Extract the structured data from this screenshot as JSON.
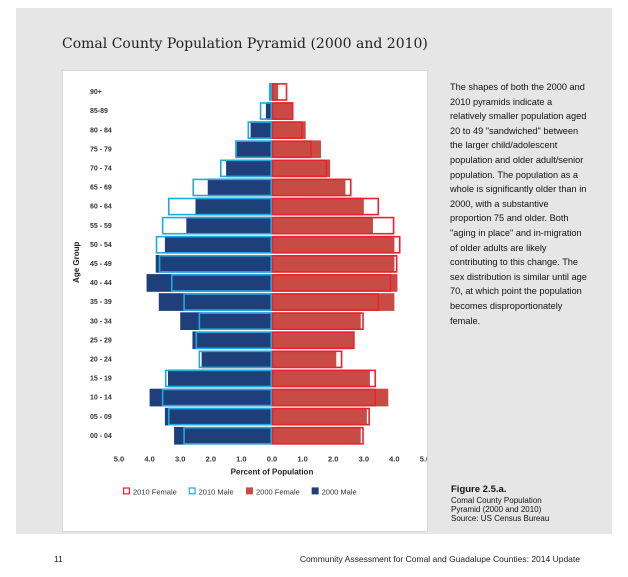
{
  "page": {
    "title": "Comal County Population Pyramid (2000 and 2010)",
    "description": "The shapes of both the 2000 and 2010 pyramids indicate a relatively smaller population aged 20 to 49 \"sandwiched\" between the larger child/adolescent population and older adult/senior population. The population as a whole is significantly older than in 2000, with a substantive proportion 75 and older. Both \"aging in place\" and in-migration of older adults are likely contributing to this change. The sex distribution is similar until age 70, at which point the population becomes disproportionately female.",
    "figure_label": "Figure 2.5.a.",
    "caption_lines": [
      "Comal County Population",
      "Pyramid (2000 and 2010)",
      "Source: US Census Bureau"
    ],
    "page_number": "11",
    "footer_title": "Community Assessment for Comal and Guadalupe Counties: 2014 Update"
  },
  "colors": {
    "female_2010": "#e8232f",
    "male_2010": "#22a9dc",
    "female_2000": "#c84b45",
    "male_2000": "#1e3f7a",
    "band": "#e6e6e6"
  },
  "chart_data": {
    "type": "bar",
    "orientation": "horizontal",
    "subtype": "population-pyramid",
    "categories": [
      "90+",
      "85-89",
      "80 - 84",
      "75 - 79",
      "70 - 74",
      "65 - 69",
      "60 - 64",
      "55 - 59",
      "50 - 54",
      "45 - 49",
      "40 - 44",
      "35 - 39",
      "30 - 34",
      "25 - 29",
      "20 - 24",
      "15 - 19",
      "10 - 14",
      "05 - 09",
      "00 - 04"
    ],
    "series": [
      {
        "name": "2010 Female",
        "style": "outline",
        "side": "right",
        "values": [
          0.5,
          0.7,
          1.0,
          1.3,
          1.8,
          2.6,
          3.5,
          4.0,
          4.2,
          4.1,
          3.9,
          3.5,
          3.0,
          2.7,
          2.3,
          3.4,
          3.4,
          3.2,
          3.0
        ]
      },
      {
        "name": "2010 Male",
        "style": "outline",
        "side": "left",
        "values": [
          0.1,
          0.4,
          0.8,
          1.2,
          1.7,
          2.6,
          3.4,
          3.6,
          3.8,
          3.7,
          3.3,
          2.9,
          2.4,
          2.5,
          2.4,
          3.5,
          3.6,
          3.4,
          2.9
        ]
      },
      {
        "name": "2000 Female",
        "style": "filled",
        "side": "right",
        "values": [
          0.2,
          0.7,
          1.1,
          1.6,
          1.9,
          2.4,
          3.0,
          3.3,
          4.0,
          4.0,
          4.1,
          4.0,
          2.9,
          2.7,
          2.1,
          3.2,
          3.8,
          3.1,
          2.9
        ]
      },
      {
        "name": "2000 Male",
        "style": "filled",
        "side": "left",
        "values": [
          0.0,
          0.2,
          0.7,
          1.2,
          1.5,
          2.1,
          2.5,
          2.8,
          3.5,
          3.8,
          4.1,
          3.7,
          3.0,
          2.6,
          2.3,
          3.4,
          4.0,
          3.5,
          3.2
        ]
      }
    ],
    "xticks": [
      "5.0",
      "4.0",
      "3.0",
      "2.0",
      "1.0",
      "0.0",
      "1.0",
      "2.0",
      "3.0",
      "4.0",
      "5.0"
    ],
    "xlim": [
      -5,
      5
    ],
    "xlabel": "Percent of Population",
    "ylabel": "Age Group",
    "legend_position": "bottom",
    "grid": false
  }
}
